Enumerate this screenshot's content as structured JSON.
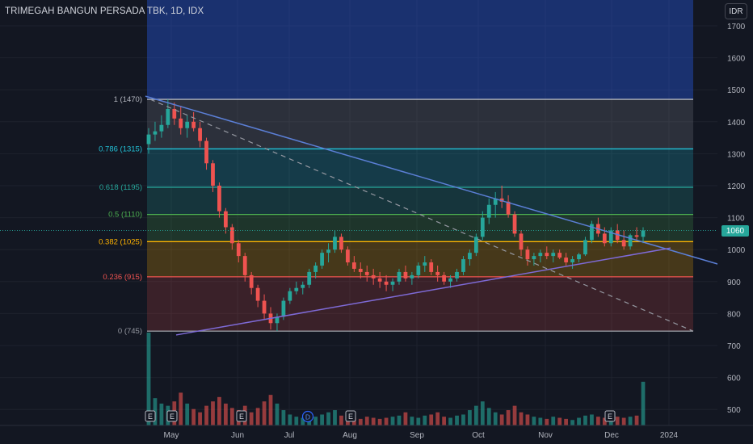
{
  "header": {
    "symbol_title": "TRIMEGAH BANGUN PERSADA TBK, 1D, IDX",
    "currency_button": "IDR"
  },
  "price_badge": "1060",
  "colors": {
    "background": "#131722",
    "up": "#26a69a",
    "down": "#ef5350",
    "trendline": "#5b7fd6",
    "support": "#7e6ad6"
  },
  "chart_data": {
    "type": "candlestick",
    "ylim": [
      460,
      1760
    ],
    "yticks": [
      500,
      600,
      700,
      800,
      900,
      1000,
      1100,
      1200,
      1300,
      1400,
      1500,
      1600,
      1700
    ],
    "xticks": [
      "May",
      "Jun",
      "Jul",
      "Aug",
      "Sep",
      "Oct",
      "Nov",
      "Dec",
      "2024"
    ],
    "fib_levels": [
      {
        "label": "1 (1470)",
        "value": 1470,
        "color": "#b2b5be"
      },
      {
        "label": "0.786 (1315)",
        "value": 1315,
        "color": "#22c1d6"
      },
      {
        "label": "0.618 (1195)",
        "value": 1195,
        "color": "#26a69a"
      },
      {
        "label": "0.5 (1110)",
        "value": 1110,
        "color": "#4caf50"
      },
      {
        "label": "0.382 (1025)",
        "value": 1025,
        "color": "#ffb300"
      },
      {
        "label": "0.236 (915)",
        "value": 915,
        "color": "#ef5350"
      },
      {
        "label": "0 (745)",
        "value": 745,
        "color": "#9598a1"
      }
    ],
    "earnings_markers": [
      "E",
      "E",
      "E",
      "E",
      "E"
    ],
    "dividend_markers": [
      "D"
    ],
    "last_price": 1060,
    "candles": [
      [
        1330,
        1380,
        1300,
        1360
      ],
      [
        1360,
        1400,
        1340,
        1370
      ],
      [
        1370,
        1420,
        1350,
        1390
      ],
      [
        1390,
        1470,
        1380,
        1440
      ],
      [
        1440,
        1460,
        1390,
        1410
      ],
      [
        1410,
        1450,
        1360,
        1380
      ],
      [
        1380,
        1420,
        1350,
        1400
      ],
      [
        1400,
        1430,
        1370,
        1380
      ],
      [
        1380,
        1400,
        1320,
        1340
      ],
      [
        1340,
        1350,
        1250,
        1270
      ],
      [
        1270,
        1280,
        1180,
        1200
      ],
      [
        1200,
        1210,
        1100,
        1120
      ],
      [
        1120,
        1130,
        1050,
        1070
      ],
      [
        1070,
        1080,
        1000,
        1020
      ],
      [
        1020,
        1030,
        960,
        980
      ],
      [
        980,
        990,
        900,
        920
      ],
      [
        920,
        930,
        860,
        880
      ],
      [
        880,
        890,
        820,
        840
      ],
      [
        840,
        860,
        780,
        800
      ],
      [
        800,
        820,
        750,
        770
      ],
      [
        770,
        800,
        745,
        790
      ],
      [
        790,
        850,
        780,
        840
      ],
      [
        840,
        880,
        830,
        870
      ],
      [
        870,
        900,
        860,
        880
      ],
      [
        880,
        900,
        860,
        890
      ],
      [
        890,
        940,
        880,
        930
      ],
      [
        930,
        960,
        910,
        950
      ],
      [
        950,
        1000,
        940,
        990
      ],
      [
        990,
        1020,
        960,
        1000
      ],
      [
        1000,
        1060,
        990,
        1040
      ],
      [
        1040,
        1050,
        990,
        1000
      ],
      [
        1000,
        1010,
        950,
        960
      ],
      [
        960,
        980,
        930,
        940
      ],
      [
        940,
        960,
        910,
        930
      ],
      [
        930,
        950,
        900,
        920
      ],
      [
        920,
        940,
        890,
        910
      ],
      [
        910,
        930,
        880,
        900
      ],
      [
        900,
        920,
        870,
        890
      ],
      [
        890,
        910,
        870,
        900
      ],
      [
        900,
        940,
        890,
        930
      ],
      [
        930,
        950,
        900,
        910
      ],
      [
        910,
        930,
        890,
        920
      ],
      [
        920,
        960,
        910,
        950
      ],
      [
        950,
        980,
        930,
        960
      ],
      [
        960,
        970,
        920,
        930
      ],
      [
        930,
        950,
        900,
        920
      ],
      [
        920,
        930,
        890,
        900
      ],
      [
        900,
        920,
        880,
        910
      ],
      [
        910,
        940,
        900,
        930
      ],
      [
        930,
        980,
        920,
        970
      ],
      [
        970,
        1000,
        950,
        990
      ],
      [
        990,
        1050,
        980,
        1040
      ],
      [
        1040,
        1120,
        1030,
        1100
      ],
      [
        1100,
        1160,
        1080,
        1140
      ],
      [
        1140,
        1180,
        1100,
        1160
      ],
      [
        1160,
        1200,
        1130,
        1150
      ],
      [
        1150,
        1170,
        1100,
        1110
      ],
      [
        1110,
        1120,
        1040,
        1050
      ],
      [
        1050,
        1060,
        980,
        1000
      ],
      [
        1000,
        1010,
        950,
        970
      ],
      [
        970,
        990,
        950,
        980
      ],
      [
        980,
        1000,
        960,
        990
      ],
      [
        990,
        1010,
        970,
        980
      ],
      [
        980,
        1000,
        960,
        990
      ],
      [
        990,
        1000,
        970,
        975
      ],
      [
        975,
        990,
        950,
        960
      ],
      [
        960,
        980,
        940,
        970
      ],
      [
        970,
        990,
        960,
        985
      ],
      [
        985,
        1040,
        980,
        1030
      ],
      [
        1030,
        1090,
        1020,
        1080
      ],
      [
        1080,
        1100,
        1040,
        1050
      ],
      [
        1050,
        1070,
        1010,
        1020
      ],
      [
        1020,
        1070,
        1010,
        1060
      ],
      [
        1060,
        1080,
        1020,
        1030
      ],
      [
        1030,
        1060,
        1000,
        1010
      ],
      [
        1010,
        1050,
        1000,
        1045
      ],
      [
        1045,
        1070,
        1030,
        1040
      ],
      [
        1040,
        1070,
        1020,
        1060
      ]
    ],
    "volumes": [
      85,
      25,
      20,
      18,
      22,
      30,
      20,
      15,
      12,
      18,
      22,
      26,
      20,
      16,
      14,
      18,
      12,
      16,
      22,
      28,
      20,
      14,
      10,
      8,
      7,
      9,
      8,
      10,
      12,
      14,
      9,
      8,
      7,
      6,
      8,
      7,
      6,
      7,
      8,
      9,
      12,
      8,
      7,
      9,
      10,
      12,
      8,
      7,
      9,
      10,
      14,
      18,
      22,
      16,
      12,
      10,
      14,
      18,
      12,
      10,
      8,
      7,
      6,
      8,
      7,
      6,
      5,
      7,
      9,
      10,
      8,
      7,
      9,
      8,
      7,
      8,
      9,
      40
    ],
    "trendline_down": {
      "from": [
        "2023-04-10",
        1480
      ],
      "to": [
        "2024-01-15",
        955
      ]
    },
    "support_line": {
      "from": [
        "2023-05-01",
        735
      ],
      "to": [
        "2023-12-31",
        1005
      ]
    },
    "projection_line": {
      "from": [
        "2023-04-10",
        1470
      ],
      "to": [
        "2024-01-01",
        745
      ]
    }
  }
}
